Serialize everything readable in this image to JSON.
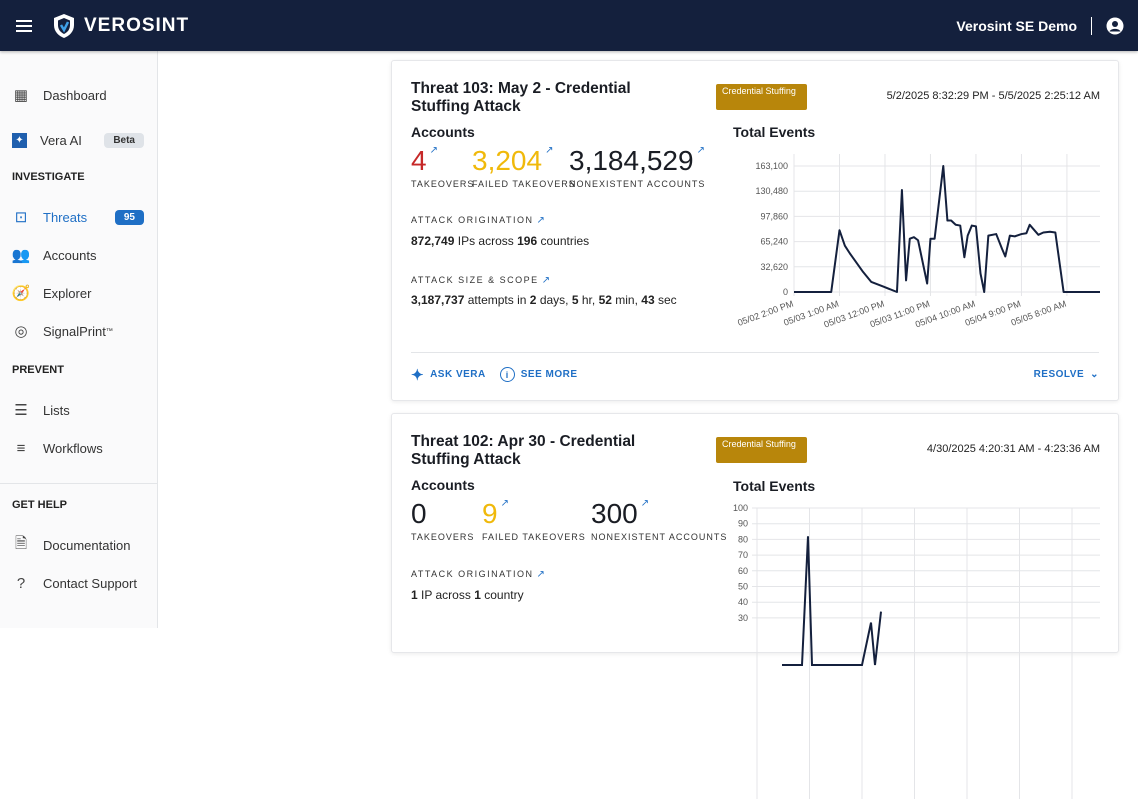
{
  "header": {
    "brand": "VEROSINT",
    "org": "Verosint SE Demo"
  },
  "sidebar": {
    "items_top": [
      {
        "label": "Dashboard",
        "icon": "dashboard-icon"
      },
      {
        "label": "Vera AI",
        "icon": "vera-ai-icon",
        "badge": "Beta"
      }
    ],
    "investigate_title": "INVESTIGATE",
    "investigate": [
      {
        "label": "Threats",
        "badge": "95"
      },
      {
        "label": "Accounts"
      },
      {
        "label": "Explorer"
      },
      {
        "label": "SignalPrint",
        "sup": "™"
      }
    ],
    "prevent_title": "PREVENT",
    "prevent": [
      {
        "label": "Lists"
      },
      {
        "label": "Workflows"
      }
    ],
    "help_title": "GET HELP",
    "help": [
      {
        "label": "Documentation"
      },
      {
        "label": "Contact Support"
      }
    ]
  },
  "threats": [
    {
      "title": "Threat 103: May 2 - Credential Stuffing Attack",
      "tag": "Credential Stuffing",
      "daterange": "5/2/2025 8:32:29 PM - 5/5/2025 2:25:12 AM",
      "accounts_label": "Accounts",
      "takeovers": "4",
      "takeovers_label": "TAKEOVERS",
      "failed": "3,204",
      "failed_label": "FAILED TAKEOVERS",
      "nonexistent": "3,184,529",
      "nonexistent_label": "NONEXISTENT ACCOUNTS",
      "origination_label": "ATTACK ORIGINATION",
      "ips": "872,749",
      "ips_text": "IPs across",
      "countries": "196",
      "countries_text": "countries",
      "scope_label": "ATTACK SIZE & SCOPE",
      "attempts": "3,187,737",
      "attempts_text": "attempts in",
      "days": "2",
      "days_t": "days,",
      "hr": "5",
      "hr_t": "hr,",
      "min": "52",
      "min_t": "min,",
      "sec": "43",
      "sec_t": "sec",
      "ask_vera": "ASK VERA",
      "see_more": "SEE MORE",
      "resolve": "RESOLVE"
    },
    {
      "title": "Threat 102: Apr 30 - Credential Stuffing Attack",
      "tag": "Credential Stuffing",
      "daterange": "4/30/2025 4:20:31 AM - 4:23:36 AM",
      "accounts_label": "Accounts",
      "takeovers": "0",
      "takeovers_label": "TAKEOVERS",
      "failed": "9",
      "failed_label": "FAILED TAKEOVERS",
      "nonexistent": "300",
      "nonexistent_label": "NONEXISTENT ACCOUNTS",
      "origination_label": "ATTACK ORIGINATION",
      "ips": "1",
      "ips_text": "IP across",
      "countries": "1",
      "countries_text": "country"
    }
  ],
  "chart_data": [
    {
      "type": "line",
      "title": "Total Events",
      "ylim": [
        0,
        163100
      ],
      "yticks": [
        "0",
        "32,620",
        "65,240",
        "97,860",
        "130,480",
        "163,100"
      ],
      "xticks": [
        "05/02 2:00 PM",
        "05/03 1:00 AM",
        "05/03 12:00 PM",
        "05/03 11:00 PM",
        "05/04 10:00 AM",
        "05/04 9:00 PM",
        "05/05 8:00 AM"
      ],
      "x_hours_from_start": [
        0,
        9,
        11,
        12.3,
        13.5,
        14.7,
        16.7,
        18.7,
        21.6,
        24.9,
        26.1,
        27.1,
        28,
        29,
        30,
        32.2,
        33,
        34,
        36.1,
        37.1,
        38,
        39.1,
        40.2,
        41.2,
        42,
        43,
        44,
        45.1,
        46,
        47,
        48.9,
        50.3,
        51.1,
        52.2,
        53.4,
        55,
        56.2,
        57,
        59.1,
        60.3,
        61.9,
        63.2,
        65.2,
        74
      ],
      "values": [
        0,
        0,
        80000,
        60000,
        50000,
        41000,
        26000,
        13000,
        7000,
        0,
        132000,
        15000,
        69000,
        71000,
        67000,
        11000,
        69000,
        69000,
        163100,
        92500,
        92500,
        87000,
        86000,
        45000,
        73000,
        86000,
        85000,
        24000,
        0,
        73000,
        75000,
        56000,
        46000,
        73000,
        72000,
        75000,
        76000,
        87000,
        74000,
        77000,
        78000,
        77000,
        0,
        0
      ]
    },
    {
      "type": "line",
      "title": "Total Events",
      "ylim": [
        0,
        100
      ],
      "yticks": [
        "30",
        "40",
        "50",
        "60",
        "70",
        "80",
        "90",
        "100"
      ],
      "x_index": [
        0,
        1,
        2,
        3,
        4,
        5,
        6,
        7,
        8,
        9
      ],
      "values": [
        0,
        0,
        0,
        82,
        0,
        0,
        0,
        27,
        0,
        34
      ]
    }
  ],
  "colors": {
    "header": "#14203d",
    "accent": "#1f6fc5",
    "takeover": "#c62828",
    "failed": "#f0b90b",
    "tag": "#b8860b"
  }
}
